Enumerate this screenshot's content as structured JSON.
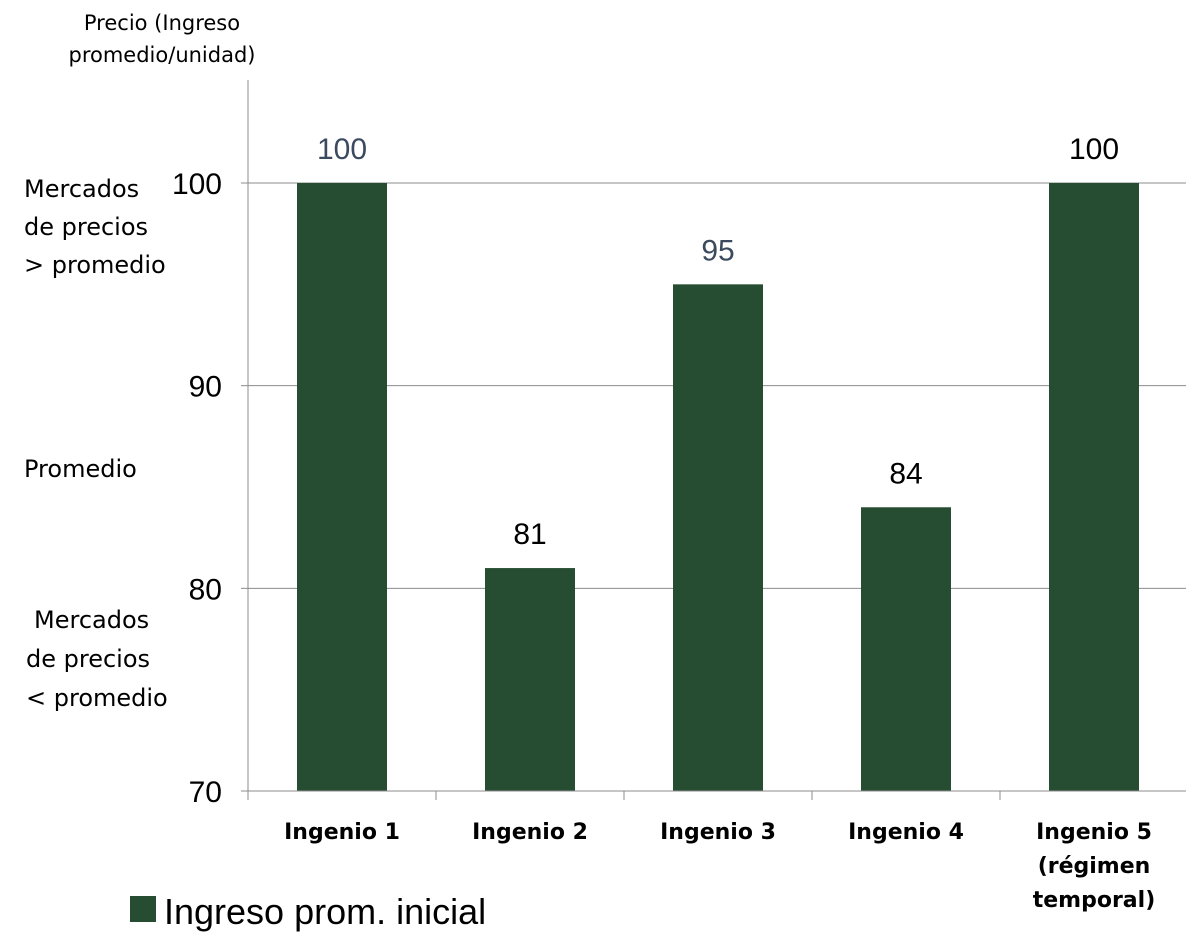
{
  "chart_data": {
    "type": "bar",
    "ylabel_lines": [
      "Precio (Ingreso",
      "promedio/unidad)"
    ],
    "categories": [
      [
        "Ingenio 1"
      ],
      [
        "Ingenio 2"
      ],
      [
        "Ingenio 3"
      ],
      [
        "Ingenio 4"
      ],
      [
        "Ingenio 5",
        "(régimen",
        "temporal)"
      ]
    ],
    "series": [
      {
        "name": "Ingreso prom. inicial",
        "values": [
          100,
          81,
          95,
          84,
          100
        ],
        "color": "#264d32"
      }
    ],
    "data_labels": [
      "100",
      "81",
      "95",
      "84",
      "100"
    ],
    "data_label_colors": [
      "#3b4a5e",
      "#000000",
      "#3b4a5e",
      "#000000",
      "#000000"
    ],
    "ylim": [
      70,
      100
    ],
    "yticks": [
      70,
      80,
      90,
      100
    ],
    "y_bands": [
      {
        "lines": [
          "Mercados",
          "de precios",
          "> promedio"
        ]
      },
      {
        "lines": [
          "Promedio"
        ]
      },
      {
        "lines": [
          "Mercados",
          "de precios",
          "< promedio"
        ]
      }
    ],
    "grid": true,
    "legend_position": "bottom-left"
  }
}
